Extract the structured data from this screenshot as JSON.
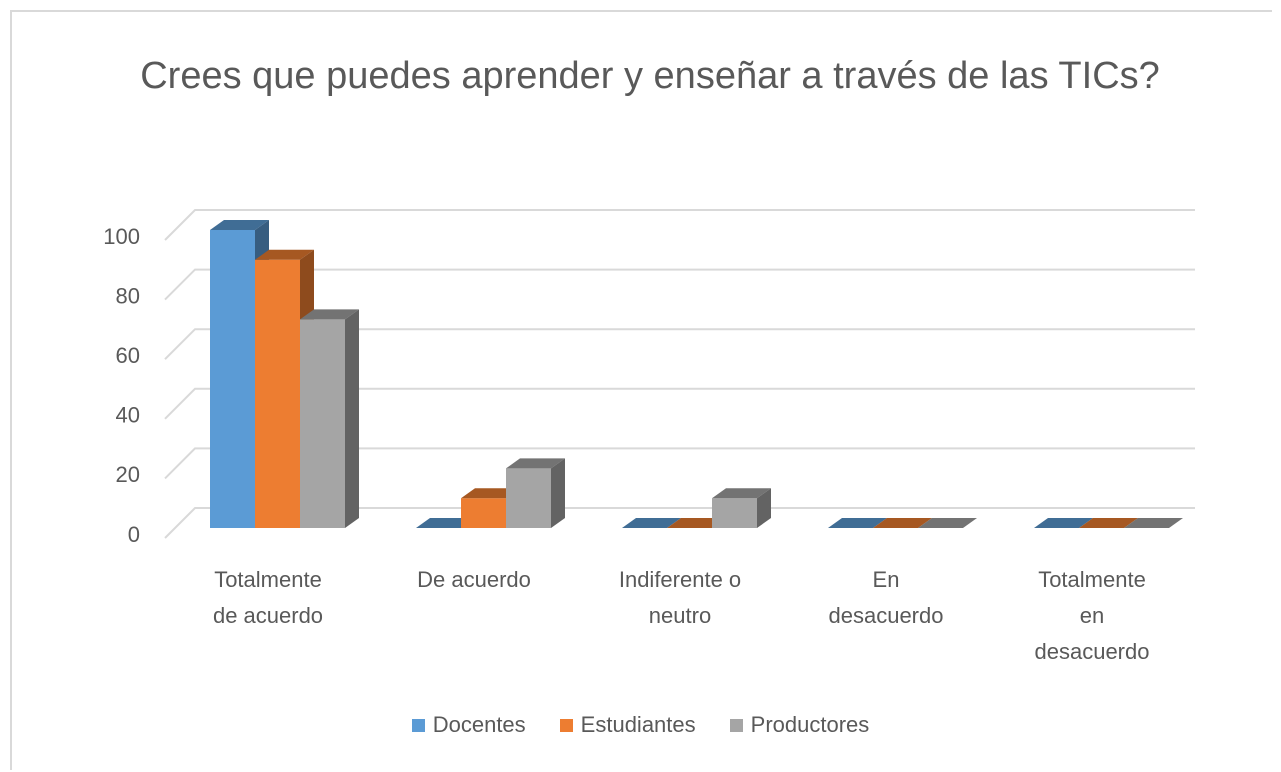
{
  "chart_data": {
    "type": "bar3d",
    "title": "Crees que puedes aprender y enseñar a través de las TICs?",
    "categories": [
      "Totalmente de acuerdo",
      "De acuerdo",
      "Indiferente o neutro",
      "En desacuerdo",
      "Totalmente en desacuerdo"
    ],
    "series": [
      {
        "name": "Docentes",
        "color": "#5b9bd5",
        "values": [
          100,
          0,
          0,
          0,
          0
        ]
      },
      {
        "name": "Estudiantes",
        "color": "#ed7d31",
        "values": [
          90,
          10,
          0,
          0,
          0
        ]
      },
      {
        "name": "Productores",
        "color": "#a5a5a5",
        "values": [
          70,
          20,
          10,
          0,
          0
        ]
      }
    ],
    "ylim": [
      0,
      100
    ],
    "yticks": [
      0,
      20,
      40,
      60,
      80,
      100
    ],
    "grid": true,
    "legend": "bottom"
  }
}
